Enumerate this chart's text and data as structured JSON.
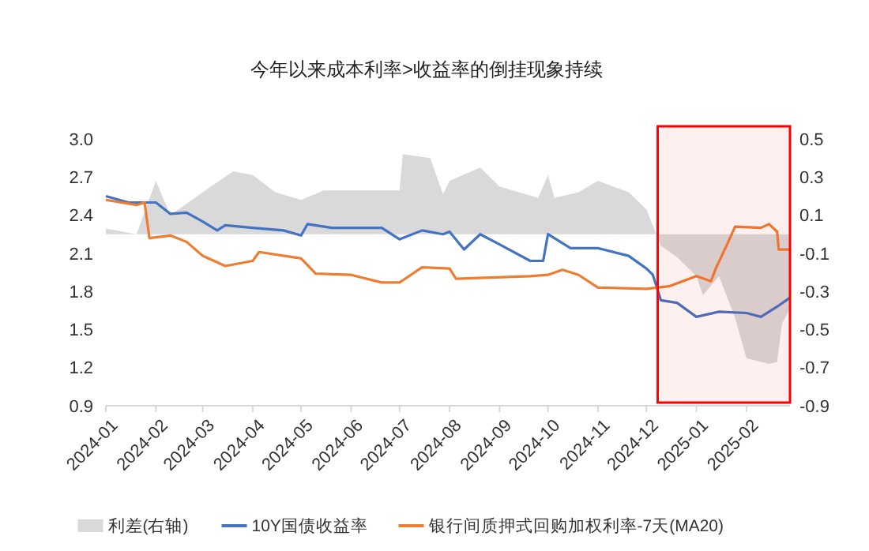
{
  "chart_data": {
    "type": "line",
    "title": "今年以来成本利率>收益率的倒挂现象持续",
    "xlim": [
      "2024-01-01",
      "2025-02-28"
    ],
    "xticks": [
      "2024-01",
      "2024-02",
      "2024-03",
      "2024-04",
      "2024-05",
      "2024-06",
      "2024-07",
      "2024-08",
      "2024-09",
      "2024-10",
      "2024-11",
      "2024-12",
      "2025-01",
      "2025-02"
    ],
    "ylim": [
      0.9,
      3.0
    ],
    "yticks": [
      0.9,
      1.2,
      1.5,
      1.8,
      2.1,
      2.4,
      2.7,
      {
        "value": 3,
        "label": "3.0"
      }
    ],
    "y2lim": [
      -0.9,
      0.5
    ],
    "y2ticks": [
      -0.9,
      -0.7,
      -0.5,
      -0.3,
      -0.1,
      0.1,
      0.3,
      0.5
    ],
    "grid": false,
    "legend": "bottom",
    "bands": [
      {
        "axis": "x",
        "from": "2024-12-08",
        "to": "2025-02-28",
        "color": "#ff0000"
      }
    ],
    "series": [
      {
        "name": "利差(右轴)",
        "type": "area",
        "axis": "y2",
        "color": "#d9d9d9",
        "x": [
          "2024-01-01",
          "2024-01-20",
          "2024-02-01",
          "2024-02-10",
          "2024-03-01",
          "2024-03-20",
          "2024-04-01",
          "2024-04-15",
          "2024-05-01",
          "2024-05-15",
          "2024-06-01",
          "2024-07-01",
          "2024-07-03",
          "2024-07-20",
          "2024-07-28",
          "2024-08-01",
          "2024-08-20",
          "2024-09-01",
          "2024-09-25",
          "2024-10-01",
          "2024-10-05",
          "2024-10-20",
          "2024-11-01",
          "2024-11-20",
          "2024-12-01",
          "2024-12-10",
          "2024-12-20",
          "2025-01-01",
          "2025-01-05",
          "2025-01-15",
          "2025-01-25",
          "2025-02-01",
          "2025-02-15",
          "2025-02-20",
          "2025-02-23",
          "2025-02-28"
        ],
        "values": [
          0.03,
          0.0,
          0.28,
          0.1,
          0.22,
          0.33,
          0.31,
          0.22,
          0.18,
          0.23,
          0.23,
          0.23,
          0.42,
          0.4,
          0.21,
          0.28,
          0.35,
          0.25,
          0.19,
          0.31,
          0.19,
          0.22,
          0.28,
          0.22,
          0.13,
          -0.06,
          -0.12,
          -0.22,
          -0.32,
          -0.22,
          -0.44,
          -0.65,
          -0.68,
          -0.67,
          -0.47,
          -0.39
        ]
      },
      {
        "name": "10Y国债收益率",
        "color": "#4472c4",
        "x": [
          "2024-01-01",
          "2024-01-15",
          "2024-02-01",
          "2024-02-10",
          "2024-02-20",
          "2024-03-01",
          "2024-03-10",
          "2024-03-15",
          "2024-04-01",
          "2024-04-20",
          "2024-05-01",
          "2024-05-05",
          "2024-05-20",
          "2024-06-01",
          "2024-06-20",
          "2024-07-01",
          "2024-07-15",
          "2024-07-28",
          "2024-08-01",
          "2024-08-10",
          "2024-08-20",
          "2024-09-01",
          "2024-09-20",
          "2024-09-28",
          "2024-10-01",
          "2024-10-15",
          "2024-11-01",
          "2024-11-20",
          "2024-12-01",
          "2024-12-05",
          "2024-12-10",
          "2024-12-20",
          "2025-01-01",
          "2025-01-15",
          "2025-02-01",
          "2025-02-10",
          "2025-02-20",
          "2025-02-28"
        ],
        "values": [
          2.55,
          2.5,
          2.5,
          2.41,
          2.42,
          2.35,
          2.28,
          2.32,
          2.3,
          2.28,
          2.24,
          2.33,
          2.3,
          2.3,
          2.3,
          2.21,
          2.28,
          2.25,
          2.27,
          2.13,
          2.25,
          2.17,
          2.04,
          2.04,
          2.25,
          2.14,
          2.14,
          2.08,
          1.98,
          1.93,
          1.73,
          1.71,
          1.6,
          1.64,
          1.63,
          1.6,
          1.68,
          1.75
        ]
      },
      {
        "name": "银行间质押式回购加权利率-7天(MA20)",
        "color": "#ed7d31",
        "x": [
          "2024-01-01",
          "2024-01-20",
          "2024-01-25",
          "2024-01-28",
          "2024-02-10",
          "2024-02-20",
          "2024-03-01",
          "2024-03-15",
          "2024-04-01",
          "2024-04-05",
          "2024-05-01",
          "2024-05-10",
          "2024-06-01",
          "2024-06-20",
          "2024-07-01",
          "2024-07-15",
          "2024-08-01",
          "2024-08-05",
          "2024-09-20",
          "2024-10-01",
          "2024-10-10",
          "2024-10-20",
          "2024-11-01",
          "2024-12-01",
          "2024-12-15",
          "2025-01-01",
          "2025-01-10",
          "2025-01-13",
          "2025-01-20",
          "2025-01-25",
          "2025-02-10",
          "2025-02-15",
          "2025-02-20",
          "2025-02-21",
          "2025-02-28"
        ],
        "values": [
          2.52,
          2.48,
          2.5,
          2.22,
          2.24,
          2.19,
          2.08,
          2.0,
          2.04,
          2.11,
          2.06,
          1.94,
          1.93,
          1.87,
          1.87,
          1.99,
          1.98,
          1.9,
          1.92,
          1.93,
          1.97,
          1.93,
          1.83,
          1.82,
          1.84,
          1.92,
          1.88,
          1.98,
          2.17,
          2.31,
          2.3,
          2.33,
          2.27,
          2.13,
          2.13
        ]
      }
    ]
  }
}
